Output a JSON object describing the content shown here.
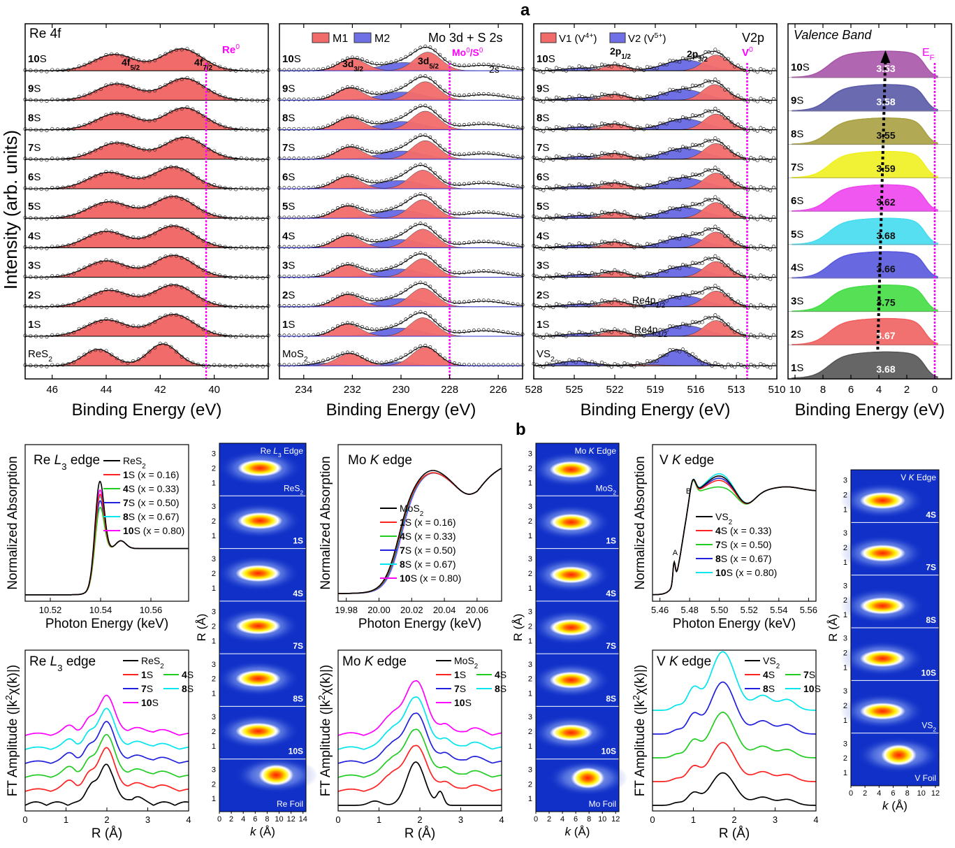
{
  "figure": {
    "panel_labels": [
      "a",
      "b"
    ],
    "xps_ylabel": "Intensity (arb. units)",
    "xps_xlabel": "Binding Energy (eV)"
  },
  "colors": {
    "red_fill": "#f26b6b",
    "blue_fill": "#6f6fe6",
    "magenta": "#ff00ff",
    "black": "#000000",
    "red": "#ff2020",
    "green": "#22cc22",
    "blue": "#2020dd",
    "cyan": "#00e5ee",
    "wt_bg": "#1030c8"
  },
  "chart_data": [
    {
      "type": "area",
      "panel": "a",
      "title": "Re 4f",
      "xlabel": "Binding Energy (eV)",
      "xlim": [
        47,
        38
      ],
      "xticks": [
        46,
        44,
        42,
        40
      ],
      "ref_line": {
        "x": 40.3,
        "label": "Re0"
      },
      "peak_labels": [
        "4f5/2",
        "4f7/2"
      ],
      "rows": [
        "10S",
        "9S",
        "8S",
        "7S",
        "6S",
        "5S",
        "4S",
        "3S",
        "2S",
        "1S",
        "ReS2"
      ],
      "peaks_eV": [
        [
          43.7,
          41.2
        ],
        [
          43.6,
          41.1
        ],
        [
          43.6,
          41.1
        ],
        [
          43.6,
          41.1
        ],
        [
          43.9,
          41.5
        ],
        [
          43.9,
          41.5
        ],
        [
          44.0,
          41.5
        ],
        [
          44.0,
          41.5
        ],
        [
          43.9,
          41.5
        ],
        [
          44.0,
          41.5
        ],
        [
          44.3,
          41.9
        ]
      ]
    },
    {
      "type": "area",
      "panel": "a",
      "title": "Mo 3d + S 2s",
      "xlabel": "Binding Energy (eV)",
      "xlim": [
        235,
        225
      ],
      "xticks": [
        234,
        232,
        230,
        228,
        226
      ],
      "legend": [
        "M1",
        "M2"
      ],
      "ref_line": {
        "x": 228.0,
        "label": "Mo0/S0"
      },
      "peak_labels": [
        "3d3/2",
        "3d5/2",
        "2s"
      ],
      "rows": [
        "10S",
        "9S",
        "8S",
        "7S",
        "6S",
        "5S",
        "4S",
        "3S",
        "2S",
        "1S",
        "MoS2"
      ],
      "peaks_eV": [
        [
          232.0,
          228.9
        ],
        [
          232.1,
          229.0
        ],
        [
          232.1,
          229.0
        ],
        [
          232.1,
          229.0
        ],
        [
          232.2,
          229.1
        ],
        [
          232.2,
          229.1
        ],
        [
          232.2,
          229.1
        ],
        [
          232.2,
          229.1
        ],
        [
          232.2,
          229.1
        ],
        [
          232.2,
          229.1
        ],
        [
          232.1,
          229.0
        ]
      ]
    },
    {
      "type": "area",
      "panel": "a",
      "title": "V2p",
      "xlabel": "Binding Energy (eV)",
      "xlim": [
        528,
        510
      ],
      "xticks": [
        528,
        525,
        522,
        519,
        516,
        513,
        510
      ],
      "legend": [
        "V1 (V4+)",
        "V2 (V5+)"
      ],
      "ref_line": {
        "x": 512.2,
        "label": "V0"
      },
      "peak_labels": [
        "2p1/2",
        "2p3/2",
        "Re4p1/2",
        "Re4p1/2"
      ],
      "rows": [
        "10S",
        "9S",
        "8S",
        "7S",
        "6S",
        "5S",
        "4S",
        "3S",
        "2S",
        "1S",
        "VS2"
      ],
      "peaks_eV": [
        [
          522.0,
          514.5
        ],
        [
          522.0,
          514.6
        ],
        [
          522.0,
          514.5
        ],
        [
          522.0,
          514.5
        ],
        [
          522.0,
          514.5
        ],
        [
          522.0,
          514.5
        ],
        [
          522.0,
          514.5
        ],
        [
          522.0,
          514.5
        ],
        [
          522.0,
          514.5
        ],
        [
          522.0,
          514.5
        ],
        [
          524.9,
          517.3
        ]
      ]
    },
    {
      "type": "area",
      "panel": "a",
      "title": "Valence Band",
      "xlabel": "Binding Energy (eV)",
      "xlim": [
        10.5,
        -1.2
      ],
      "xticks": [
        10,
        8,
        6,
        4,
        2,
        0
      ],
      "ref_line": {
        "x": 0,
        "label": "EF"
      },
      "rows": [
        "10S",
        "9S",
        "8S",
        "7S",
        "6S",
        "5S",
        "4S",
        "3S",
        "2S",
        "1S"
      ],
      "values": [
        "3.53",
        "3.58",
        "3.55",
        "3.59",
        "3.62",
        "3.68",
        "3.66",
        "3.75",
        "3.67",
        "3.68"
      ],
      "fill_colors": [
        "#a855a8",
        "#5a5aa8",
        "#a8a040",
        "#f0f020",
        "#ee44ee",
        "#44dcee",
        "#5858dd",
        "#44dd44",
        "#f06060",
        "#555555"
      ]
    },
    {
      "type": "line",
      "panel": "b",
      "title": "Re L3 edge",
      "xlabel": "Photon Energy (keV)",
      "ylabel": "Normalized Absorption",
      "xlim": [
        10.51,
        10.575
      ],
      "xticks": [
        "10.52",
        "10.54",
        "10.56"
      ],
      "series": [
        "ReS2",
        "1S (x = 0.16)",
        "4S (x = 0.33)",
        "7S (x = 0.50)",
        "8S (x = 0.67)",
        "10S (x = 0.80)"
      ],
      "white_line_peak": [
        3.0,
        2.7,
        2.4,
        2.55,
        2.65,
        2.8
      ],
      "edge_keV": 10.539
    },
    {
      "type": "line",
      "panel": "b",
      "title": "Mo K edge",
      "xlabel": "Photon Energy (keV)",
      "ylabel": "Normalized Absorption",
      "xlim": [
        19.975,
        20.075
      ],
      "xticks": [
        "19.98",
        "20.00",
        "20.02",
        "20.04",
        "20.06"
      ],
      "series": [
        "MoS2",
        "1S (x = 0.16)",
        "4S (x = 0.33)",
        "7S (x = 0.50)",
        "8S (x = 0.67)",
        "10S (x = 0.80)"
      ],
      "edge_keV": 20.012
    },
    {
      "type": "line",
      "panel": "b",
      "title": "V K edge",
      "xlabel": "Photon Energy (keV)",
      "ylabel": "Normalized Absorption",
      "xlim": [
        5.455,
        5.565
      ],
      "xticks": [
        "5.46",
        "5.48",
        "5.50",
        "5.52",
        "5.54",
        "5.56"
      ],
      "annotations": [
        "A",
        "B"
      ],
      "series": [
        "VS2",
        "4S (x = 0.33)",
        "7S (x = 0.50)",
        "8S (x = 0.67)",
        "10S (x = 0.80)"
      ],
      "edge_keV": 5.475
    },
    {
      "type": "line",
      "panel": "b",
      "title": "Re L3 edge",
      "xlabel": "R (Å)",
      "ylabel": "FT Amplitude (|k2χ(k)|)",
      "xlim": [
        0,
        4
      ],
      "xticks": [
        "0",
        "1",
        "2",
        "3",
        "4"
      ],
      "series": [
        "ReS2",
        "1S",
        "4S",
        "7S",
        "8S",
        "10S"
      ],
      "peak_R": 1.97
    },
    {
      "type": "line",
      "panel": "b",
      "title": "Mo K edge",
      "xlabel": "R (Å)",
      "ylabel": "FT Amplitude (|k2χ(k)|)",
      "xlim": [
        0,
        4
      ],
      "xticks": [
        "0",
        "1",
        "2",
        "3",
        "4"
      ],
      "series": [
        "MoS2",
        "1S",
        "4S",
        "7S",
        "8S",
        "10S"
      ],
      "peak_R": 1.9
    },
    {
      "type": "line",
      "panel": "b",
      "title": "V K edge",
      "xlabel": "R (Å)",
      "ylabel": "FT Amplitude (|k2χ(k)|)",
      "xlim": [
        0,
        4
      ],
      "xticks": [
        "0",
        "1",
        "2",
        "3",
        "4"
      ],
      "series": [
        "VS2",
        "4S",
        "7S",
        "8S",
        "10S"
      ],
      "peak_R": 1.72
    },
    {
      "type": "heatmap",
      "panel": "b",
      "title": "Re L3 Edge",
      "xlabel": "k (Å)",
      "ylabel": "R (Å)",
      "xticks": [
        "0",
        "2",
        "4",
        "6",
        "8",
        "10",
        "12",
        "14"
      ],
      "yticks": [
        "1",
        "2",
        "3"
      ],
      "tiles": [
        "ReS2",
        "1S",
        "4S",
        "7S",
        "8S",
        "10S",
        "Re Foil"
      ],
      "centers_k_R": [
        [
          6.8,
          2.0
        ],
        [
          6.8,
          2.0
        ],
        [
          6.5,
          2.0
        ],
        [
          6.5,
          2.0
        ],
        [
          6.5,
          2.0
        ],
        [
          6.5,
          2.0
        ],
        [
          9.5,
          2.6
        ]
      ]
    },
    {
      "type": "heatmap",
      "panel": "b",
      "title": "Mo K Edge",
      "xlabel": "k (Å)",
      "ylabel": "R (Å)",
      "xticks": [
        "0",
        "2",
        "4",
        "6",
        "8",
        "10",
        "12"
      ],
      "yticks": [
        "1",
        "2",
        "3"
      ],
      "tiles": [
        "MoS2",
        "1S",
        "4S",
        "7S",
        "8S",
        "10S",
        "Mo Foil"
      ],
      "centers_k_R": [
        [
          5.3,
          1.9
        ],
        [
          5.3,
          1.9
        ],
        [
          5.3,
          1.9
        ],
        [
          5.3,
          1.9
        ],
        [
          5.3,
          1.9
        ],
        [
          5.3,
          1.9
        ],
        [
          7.8,
          2.4
        ]
      ]
    },
    {
      "type": "heatmap",
      "panel": "b",
      "title": "V K Edge",
      "xlabel": "k (Å)",
      "ylabel": "R (Å)",
      "xticks": [
        "0",
        "2",
        "4",
        "6",
        "8",
        "10",
        "12"
      ],
      "yticks": [
        "1",
        "2",
        "3"
      ],
      "tiles": [
        "4S",
        "7S",
        "8S",
        "10S",
        "VS2",
        "V Foil"
      ],
      "centers_k_R": [
        [
          4.5,
          1.6
        ],
        [
          4.5,
          1.6
        ],
        [
          4.5,
          1.6
        ],
        [
          4.5,
          1.6
        ],
        [
          4.5,
          1.6
        ],
        [
          6.8,
          2.2
        ]
      ]
    }
  ]
}
